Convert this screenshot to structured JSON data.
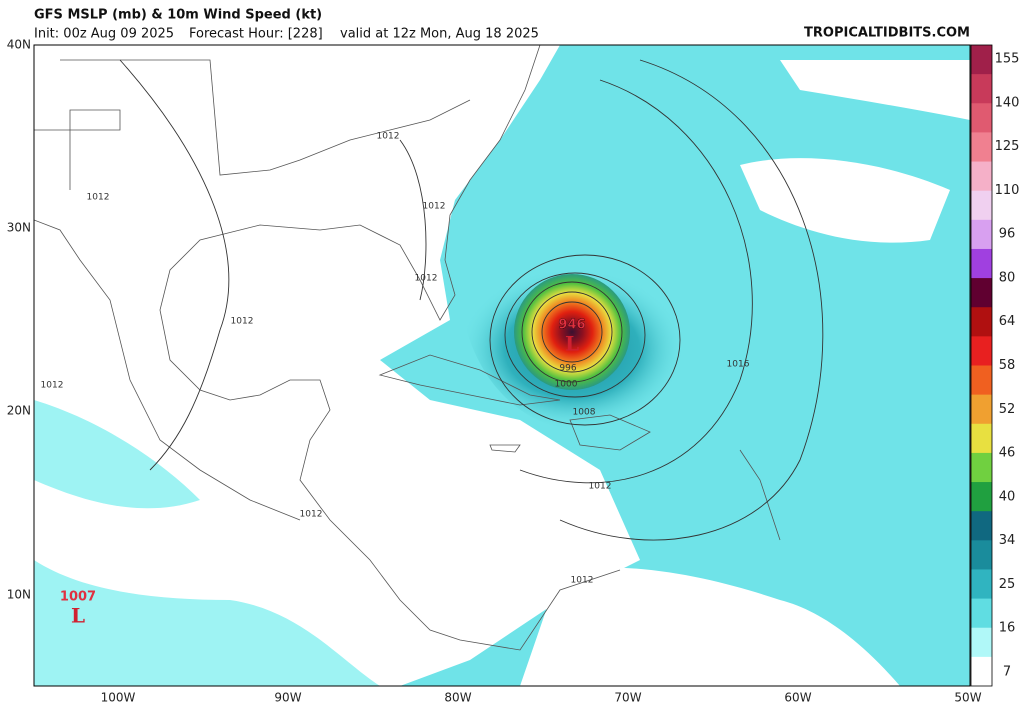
{
  "header": {
    "title": "GFS MSLP (mb) & 10m Wind Speed (kt)",
    "init": "Init: 00z Aug 09 2025",
    "forecast_hour": "Forecast Hour: [228]",
    "valid": "valid at 12z Mon, Aug 18 2025",
    "site": "TROPICALTIDBITS.COM"
  },
  "map": {
    "lat_labels": [
      "40N",
      "30N",
      "20N",
      "10N"
    ],
    "lon_labels": [
      "100W",
      "90W",
      "80W",
      "70W",
      "60W",
      "50W"
    ],
    "isobar_labels": [
      "1012",
      "1012",
      "1012",
      "1012",
      "1012",
      "1012",
      "1012",
      "1012",
      "1012",
      "996",
      "1000",
      "1008",
      "1016"
    ],
    "lows": [
      {
        "symbol": "L",
        "pressure": "946"
      },
      {
        "symbol": "L",
        "pressure": "1007"
      }
    ]
  },
  "colorbar": {
    "labels": [
      "155",
      "140",
      "125",
      "110",
      "96",
      "80",
      "64",
      "58",
      "52",
      "46",
      "40",
      "34",
      "25",
      "16",
      "7"
    ]
  }
}
